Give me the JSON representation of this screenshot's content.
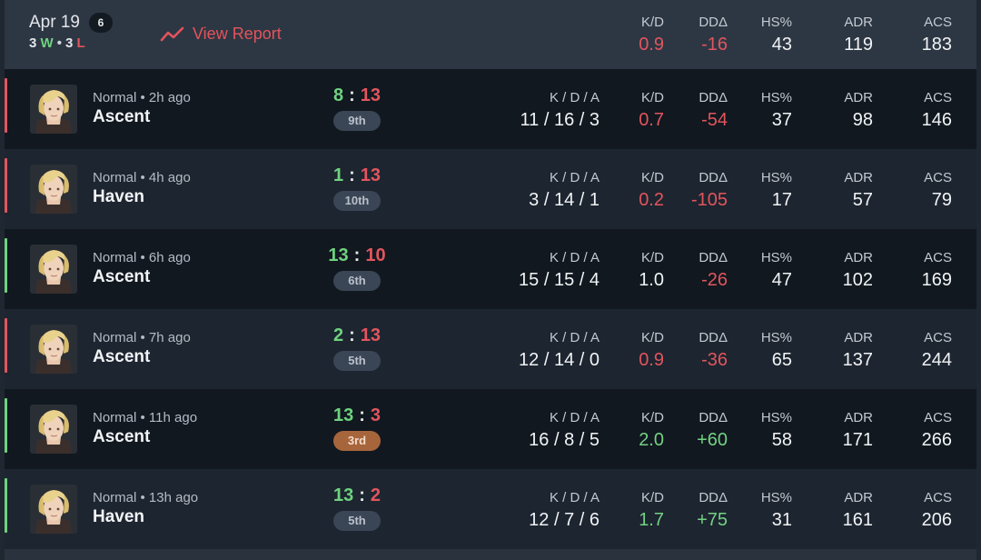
{
  "summary": {
    "date": "Apr 19",
    "match_count": "6",
    "wins": "3",
    "wins_letter": "W",
    "separator": "•",
    "losses": "3",
    "losses_letter": "L",
    "view_report_label": "View Report",
    "stats": {
      "kd": {
        "label": "K/D",
        "value": "0.9",
        "tone": "red"
      },
      "dd": {
        "label": "DDΔ",
        "value": "-16",
        "tone": "red"
      },
      "hs": {
        "label": "HS%",
        "value": "43",
        "tone": "neutral"
      },
      "adr": {
        "label": "ADR",
        "value": "119",
        "tone": "neutral"
      },
      "acs": {
        "label": "ACS",
        "value": "183",
        "tone": "neutral"
      }
    }
  },
  "labels": {
    "kda": "K / D / A",
    "kd": "K/D",
    "dd": "DDΔ",
    "hs": "HS%",
    "adr": "ADR",
    "acs": "ACS"
  },
  "colors": {
    "win": "#6fd27f",
    "loss": "#e2555d",
    "mvp_badge": "#a7653c",
    "badge": "#3a4656"
  },
  "matches": [
    {
      "result": "loss",
      "mode": "Normal • 2h ago",
      "map": "Ascent",
      "agent_icon": "blonde-agent-portrait",
      "score_team": "8",
      "score_sep": ":",
      "score_enemy": "13",
      "placement": "9th",
      "kda": "11 / 16 / 3",
      "kd": "0.7",
      "kd_tone": "red",
      "dd": "-54",
      "dd_tone": "red",
      "hs": "37",
      "adr": "98",
      "acs": "146"
    },
    {
      "result": "loss",
      "mode": "Normal • 4h ago",
      "map": "Haven",
      "agent_icon": "blonde-agent-portrait",
      "score_team": "1",
      "score_sep": ":",
      "score_enemy": "13",
      "placement": "10th",
      "kda": "3 / 14 / 1",
      "kd": "0.2",
      "kd_tone": "red",
      "dd": "-105",
      "dd_tone": "red",
      "hs": "17",
      "adr": "57",
      "acs": "79"
    },
    {
      "result": "win",
      "mode": "Normal • 6h ago",
      "map": "Ascent",
      "agent_icon": "blonde-agent-portrait",
      "score_team": "13",
      "score_sep": ":",
      "score_enemy": "10",
      "placement": "6th",
      "kda": "15 / 15 / 4",
      "kd": "1.0",
      "kd_tone": "neutral",
      "dd": "-26",
      "dd_tone": "red",
      "hs": "47",
      "adr": "102",
      "acs": "169"
    },
    {
      "result": "loss",
      "mode": "Normal • 7h ago",
      "map": "Ascent",
      "agent_icon": "blonde-agent-portrait",
      "score_team": "2",
      "score_sep": ":",
      "score_enemy": "13",
      "placement": "5th",
      "kda": "12 / 14 / 0",
      "kd": "0.9",
      "kd_tone": "red",
      "dd": "-36",
      "dd_tone": "red",
      "hs": "65",
      "adr": "137",
      "acs": "244"
    },
    {
      "result": "win",
      "mode": "Normal • 11h ago",
      "map": "Ascent",
      "agent_icon": "blonde-agent-portrait",
      "score_team": "13",
      "score_sep": ":",
      "score_enemy": "3",
      "placement": "3rd",
      "placement_mvp": true,
      "kda": "16 / 8 / 5",
      "kd": "2.0",
      "kd_tone": "green",
      "dd": "+60",
      "dd_tone": "green",
      "hs": "58",
      "adr": "171",
      "acs": "266"
    },
    {
      "result": "win",
      "mode": "Normal • 13h ago",
      "map": "Haven",
      "agent_icon": "blonde-agent-portrait",
      "score_team": "13",
      "score_sep": ":",
      "score_enemy": "2",
      "placement": "5th",
      "kda": "12 / 7 / 6",
      "kd": "1.7",
      "kd_tone": "green",
      "dd": "+75",
      "dd_tone": "green",
      "hs": "31",
      "adr": "161",
      "acs": "206"
    }
  ]
}
